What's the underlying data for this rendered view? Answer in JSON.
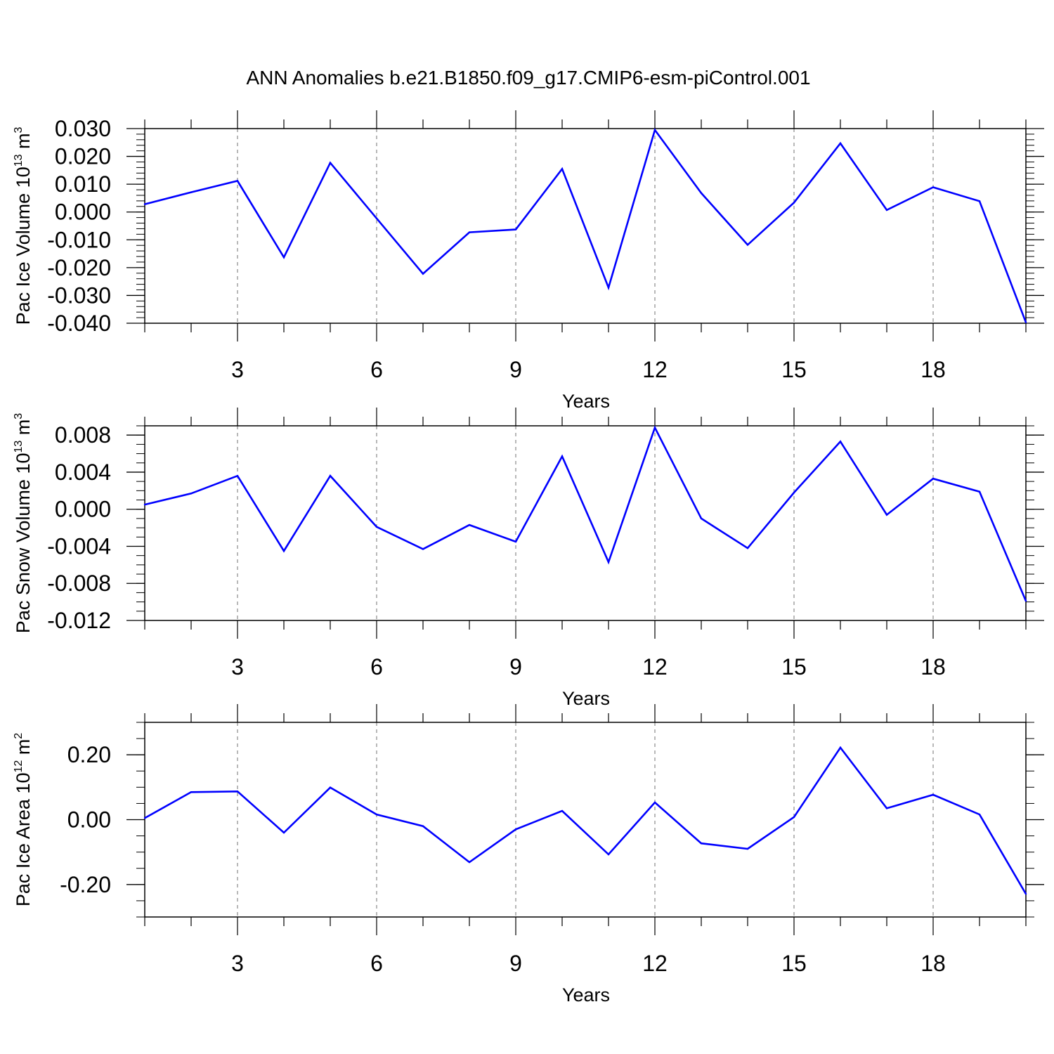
{
  "title": "ANN Anomalies b.e21.B1850.f09_g17.CMIP6-esm-piControl.001",
  "line_color": "#0000ff",
  "grid_color": "#888888",
  "chart_data": [
    {
      "type": "line",
      "xlabel": "Years",
      "ylabel": {
        "main": "Pac Ice Volume 10",
        "exp": "13",
        "unit": " m",
        "unit_exp": "3"
      },
      "xlim": [
        1,
        20
      ],
      "ylim": [
        -0.04,
        0.03
      ],
      "x_ticks": [
        3,
        6,
        9,
        12,
        15,
        18
      ],
      "y_ticks": [
        -0.04,
        -0.03,
        -0.02,
        -0.01,
        0.0,
        0.01,
        0.02,
        0.03
      ],
      "y_tick_labels": [
        "-0.040",
        "-0.030",
        "-0.020",
        "-0.010",
        "0.000",
        "0.010",
        "0.020",
        "0.030"
      ],
      "y_minor_step": 0.002,
      "x": [
        1,
        2,
        3,
        4,
        5,
        6,
        7,
        8,
        9,
        10,
        11,
        12,
        13,
        14,
        15,
        16,
        17,
        18,
        19,
        20
      ],
      "values": [
        0.0028,
        0.0071,
        0.0112,
        -0.0163,
        0.0177,
        -0.0023,
        -0.0222,
        -0.0073,
        -0.0063,
        0.0155,
        -0.0272,
        0.0295,
        0.0068,
        -0.0118,
        0.0034,
        0.0247,
        0.0007,
        0.0089,
        0.0039,
        -0.0397
      ]
    },
    {
      "type": "line",
      "xlabel": "Years",
      "ylabel": {
        "main": "Pac Snow Volume 10",
        "exp": "13",
        "unit": " m",
        "unit_exp": "3"
      },
      "xlim": [
        1,
        20
      ],
      "ylim": [
        -0.012,
        0.009
      ],
      "x_ticks": [
        3,
        6,
        9,
        12,
        15,
        18
      ],
      "y_ticks": [
        -0.012,
        -0.008,
        -0.004,
        0.0,
        0.004,
        0.008
      ],
      "y_tick_labels": [
        "-0.012",
        "-0.008",
        "-0.004",
        "0.000",
        "0.004",
        "0.008"
      ],
      "y_minor_step": 0.001,
      "x": [
        1,
        2,
        3,
        4,
        5,
        6,
        7,
        8,
        9,
        10,
        11,
        12,
        13,
        14,
        15,
        16,
        17,
        18,
        19,
        20
      ],
      "values": [
        0.0005,
        0.0017,
        0.0036,
        -0.0045,
        0.0036,
        -0.0019,
        -0.0043,
        -0.0017,
        -0.0035,
        0.0057,
        -0.0057,
        0.0088,
        -0.001,
        -0.0042,
        0.0018,
        0.0073,
        -0.0006,
        0.0033,
        0.0019,
        -0.0099
      ]
    },
    {
      "type": "line",
      "xlabel": "Years",
      "ylabel": {
        "main": "Pac Ice Area 10",
        "exp": "12",
        "unit": " m",
        "unit_exp": "2"
      },
      "xlim": [
        1,
        20
      ],
      "ylim": [
        -0.3,
        0.3
      ],
      "x_ticks": [
        3,
        6,
        9,
        12,
        15,
        18
      ],
      "y_ticks": [
        -0.2,
        0.0,
        0.2
      ],
      "y_tick_labels": [
        "-0.20",
        "0.00",
        "0.20"
      ],
      "y_minor_step": 0.05,
      "x": [
        1,
        2,
        3,
        4,
        5,
        6,
        7,
        8,
        9,
        10,
        11,
        12,
        13,
        14,
        15,
        16,
        17,
        18,
        19,
        20
      ],
      "values": [
        0.005,
        0.085,
        0.087,
        -0.04,
        0.099,
        0.016,
        -0.02,
        -0.131,
        -0.03,
        0.027,
        -0.107,
        0.053,
        -0.073,
        -0.09,
        0.008,
        0.222,
        0.035,
        0.077,
        0.016,
        -0.229
      ]
    }
  ]
}
